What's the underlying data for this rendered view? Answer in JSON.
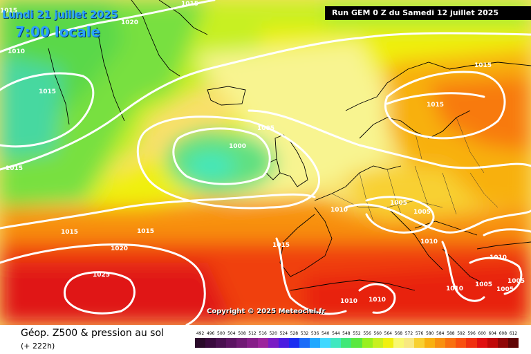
{
  "map_header": {
    "date": "Lundi 21 juillet 2025",
    "time": "7:00 locale",
    "run": "Run GEM 0 Z du Samedi 12 juillet 2025"
  },
  "copyright": "Copyright © 2025 Meteociel.fr",
  "legend": {
    "product": "Géop. Z500 & pression au sol",
    "lead": "(+ 222h)",
    "scale": [
      {
        "value": "492",
        "color": "#2a0a2a"
      },
      {
        "value": "496",
        "color": "#3a0a3e"
      },
      {
        "value": "500",
        "color": "#4a1050"
      },
      {
        "value": "504",
        "color": "#5c1462"
      },
      {
        "value": "508",
        "color": "#701a74"
      },
      {
        "value": "512",
        "color": "#861e88"
      },
      {
        "value": "516",
        "color": "#9c249c"
      },
      {
        "value": "520",
        "color": "#7a1cc4"
      },
      {
        "value": "524",
        "color": "#4a1ce0"
      },
      {
        "value": "528",
        "color": "#1a2cf0"
      },
      {
        "value": "532",
        "color": "#1a6cf8"
      },
      {
        "value": "536",
        "color": "#20a8ff"
      },
      {
        "value": "540",
        "color": "#40d8ff"
      },
      {
        "value": "544",
        "color": "#40e8c0"
      },
      {
        "value": "548",
        "color": "#40e878"
      },
      {
        "value": "552",
        "color": "#5ae840"
      },
      {
        "value": "556",
        "color": "#98f020"
      },
      {
        "value": "560",
        "color": "#c8f020"
      },
      {
        "value": "564",
        "color": "#f0f010"
      },
      {
        "value": "568",
        "color": "#f8f870"
      },
      {
        "value": "572",
        "color": "#f8e880"
      },
      {
        "value": "576",
        "color": "#f8d030"
      },
      {
        "value": "580",
        "color": "#f8b010"
      },
      {
        "value": "584",
        "color": "#f89010"
      },
      {
        "value": "588",
        "color": "#f87010"
      },
      {
        "value": "592",
        "color": "#f85010"
      },
      {
        "value": "596",
        "color": "#f03010"
      },
      {
        "value": "600",
        "color": "#e01010"
      },
      {
        "value": "604",
        "color": "#c00808"
      },
      {
        "value": "608",
        "color": "#900606"
      },
      {
        "value": "612",
        "color": "#600404"
      }
    ]
  },
  "isobars": [
    {
      "label": "1015"
    },
    {
      "label": "1020"
    },
    {
      "label": "1010"
    },
    {
      "label": "1015"
    },
    {
      "label": "1015"
    },
    {
      "label": "1005"
    },
    {
      "label": "1000"
    },
    {
      "label": "1015"
    },
    {
      "label": "1015"
    },
    {
      "label": "1015"
    },
    {
      "label": "1020"
    },
    {
      "label": "1025"
    },
    {
      "label": "1010"
    },
    {
      "label": "1005"
    },
    {
      "label": "1005"
    },
    {
      "label": "1010"
    },
    {
      "label": "1015"
    },
    {
      "label": "1010"
    },
    {
      "label": "1010"
    },
    {
      "label": "1010"
    },
    {
      "label": "1005"
    },
    {
      "label": "1005"
    },
    {
      "label": "1005"
    },
    {
      "label": "1010"
    },
    {
      "label": "1015"
    },
    {
      "label": "1015"
    }
  ]
}
